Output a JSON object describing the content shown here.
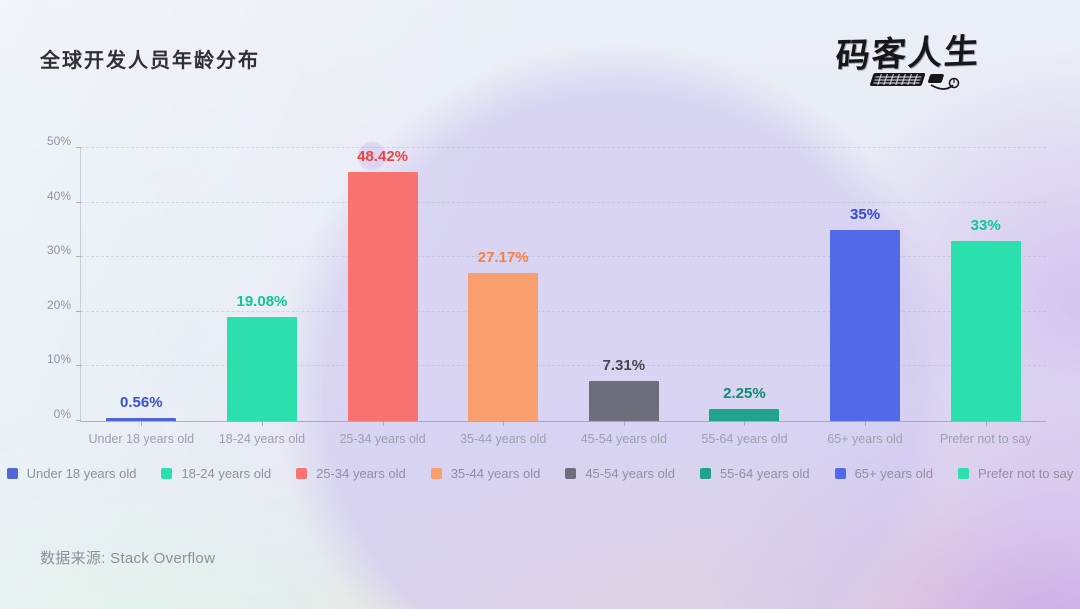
{
  "header": {
    "title": "全球开发人员年龄分布",
    "logo_text": "码客人生"
  },
  "source": {
    "label": "数据来源: Stack Overflow"
  },
  "chart_data": {
    "type": "bar",
    "title": "全球开发人员年龄分布",
    "categories": [
      "Under 18 years old",
      "18-24 years old",
      "25-34 years old",
      "35-44 years old",
      "45-54 years old",
      "55-64 years old",
      "65+ years old",
      "Prefer not to say"
    ],
    "values": [
      0.56,
      19.08,
      48.42,
      27.17,
      7.31,
      2.25,
      35,
      33
    ],
    "value_labels": [
      "0.56%",
      "19.08%",
      "48.42%",
      "27.17%",
      "7.31%",
      "2.25%",
      "35%",
      "33%"
    ],
    "bar_colors": [
      "#5066d8",
      "#2ce0ae",
      "#f87370",
      "#f99e6d",
      "#6d6d7b",
      "#21a28c",
      "#5269ea",
      "#2ce0ae"
    ],
    "label_colors": [
      "#3a4fd0",
      "#0fc795",
      "#f2413e",
      "#f58140",
      "#45454f",
      "#0e8a70",
      "#3347d4",
      "#0fc795"
    ],
    "xlabel": "",
    "ylabel": "",
    "ylim": [
      0,
      50
    ],
    "yticks": [
      0,
      10,
      20,
      30,
      40,
      50
    ],
    "ytick_labels": [
      "0%",
      "10%",
      "20%",
      "30%",
      "40%",
      "50%"
    ],
    "grid": "horizontal-dashed",
    "legend_position": "bottom",
    "legend": [
      "Under 18 years old",
      "18-24 years old",
      "25-34 years old",
      "35-44 years old",
      "45-54 years old",
      "55-64 years old",
      "65+ years old",
      "Prefer not to say"
    ],
    "source": "数据来源: Stack Overflow"
  }
}
